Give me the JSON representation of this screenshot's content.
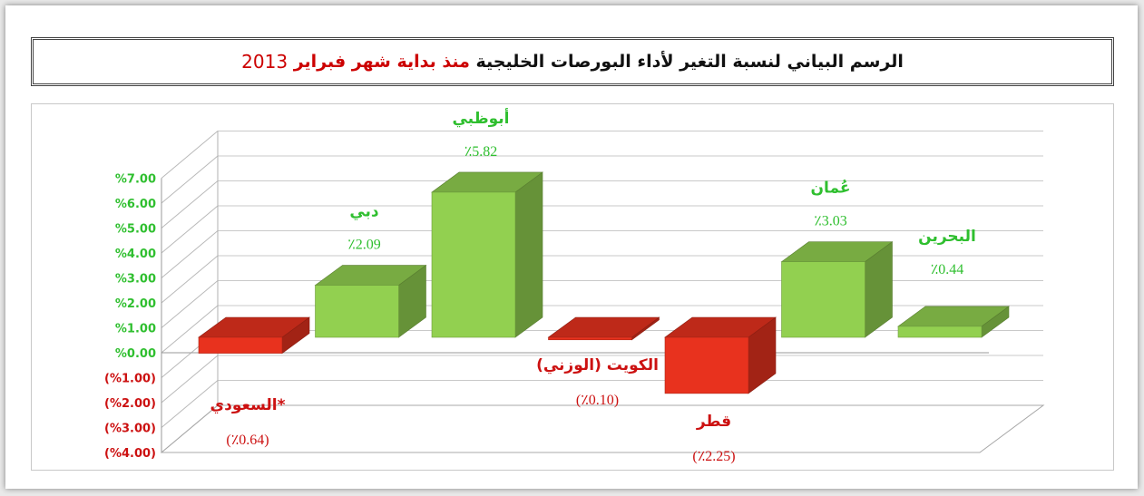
{
  "title": {
    "part1": "الرسم البياني لنسبة التغير لأداء البورصات الخليجية",
    "part2": "منذ بداية شهر فبراير",
    "year": "2013"
  },
  "colors": {
    "positive": "#92d050",
    "negative": "#e8321e",
    "title_accent": "#cc0000",
    "pos_label": "#2fbf2f",
    "neg_label": "#cc1111"
  },
  "chart_data": {
    "type": "bar",
    "title": "الرسم البياني لنسبة التغير لأداء البورصات الخليجية منذ بداية شهر فبراير 2013",
    "categories": [
      "السعودي*",
      "دبي",
      "أبوظبي",
      "الكويت (الوزني)",
      "قطر",
      "عُمان",
      "البحرين"
    ],
    "values": [
      -0.64,
      2.09,
      5.82,
      -0.1,
      -2.25,
      3.03,
      0.44
    ],
    "value_labels": [
      "(٪0.64)",
      "٪2.09",
      "٪5.82",
      "(٪0.10)",
      "(٪2.25)",
      "٪3.03",
      "٪0.44"
    ],
    "ylim": [
      -4,
      7
    ],
    "y_ticks": [
      "%7.00",
      "%6.00",
      "%5.00",
      "%4.00",
      "%3.00",
      "%2.00",
      "%1.00",
      "%0.00",
      "(%1.00)",
      "(%2.00)",
      "(%3.00)",
      "(%4.00)"
    ],
    "y_tick_values": [
      7,
      6,
      5,
      4,
      3,
      2,
      1,
      0,
      -1,
      -2,
      -3,
      -4
    ],
    "grid": true,
    "style": "3d-column"
  }
}
